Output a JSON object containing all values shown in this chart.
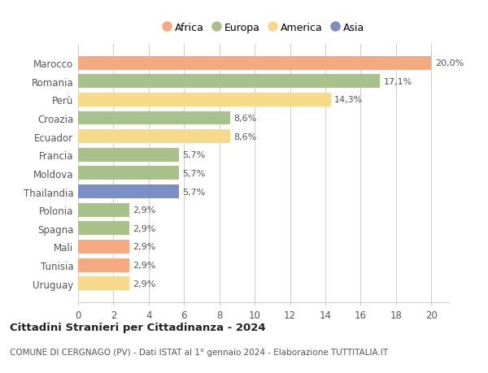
{
  "countries": [
    "Marocco",
    "Romania",
    "Perù",
    "Croazia",
    "Ecuador",
    "Francia",
    "Moldova",
    "Thailandia",
    "Polonia",
    "Spagna",
    "Mali",
    "Tunisia",
    "Uruguay"
  ],
  "values": [
    20.0,
    17.1,
    14.3,
    8.6,
    8.6,
    5.7,
    5.7,
    5.7,
    2.9,
    2.9,
    2.9,
    2.9,
    2.9
  ],
  "labels": [
    "20,0%",
    "17,1%",
    "14,3%",
    "8,6%",
    "8,6%",
    "5,7%",
    "5,7%",
    "5,7%",
    "2,9%",
    "2,9%",
    "2,9%",
    "2,9%",
    "2,9%"
  ],
  "colors": [
    "#F4A97F",
    "#A8C08A",
    "#F7D98B",
    "#A8C08A",
    "#F7D98B",
    "#A8C08A",
    "#A8C08A",
    "#7B8FC4",
    "#A8C08A",
    "#A8C08A",
    "#F4A97F",
    "#F4A97F",
    "#F7D98B"
  ],
  "legend_labels": [
    "Africa",
    "Europa",
    "America",
    "Asia"
  ],
  "legend_colors": [
    "#F4A97F",
    "#A8C08A",
    "#F7D98B",
    "#7B8FC4"
  ],
  "xlim": [
    0,
    20
  ],
  "xticks": [
    0,
    2,
    4,
    6,
    8,
    10,
    12,
    14,
    16,
    18,
    20
  ],
  "title": "Cittadini Stranieri per Cittadinanza - 2024",
  "subtitle": "COMUNE DI CERGNAGO (PV) - Dati ISTAT al 1° gennaio 2024 - Elaborazione TUTTITALIA.IT",
  "background_color": "#ffffff",
  "grid_color": "#cccccc",
  "bar_height": 0.75,
  "figsize": [
    6.0,
    4.6
  ],
  "dpi": 100
}
